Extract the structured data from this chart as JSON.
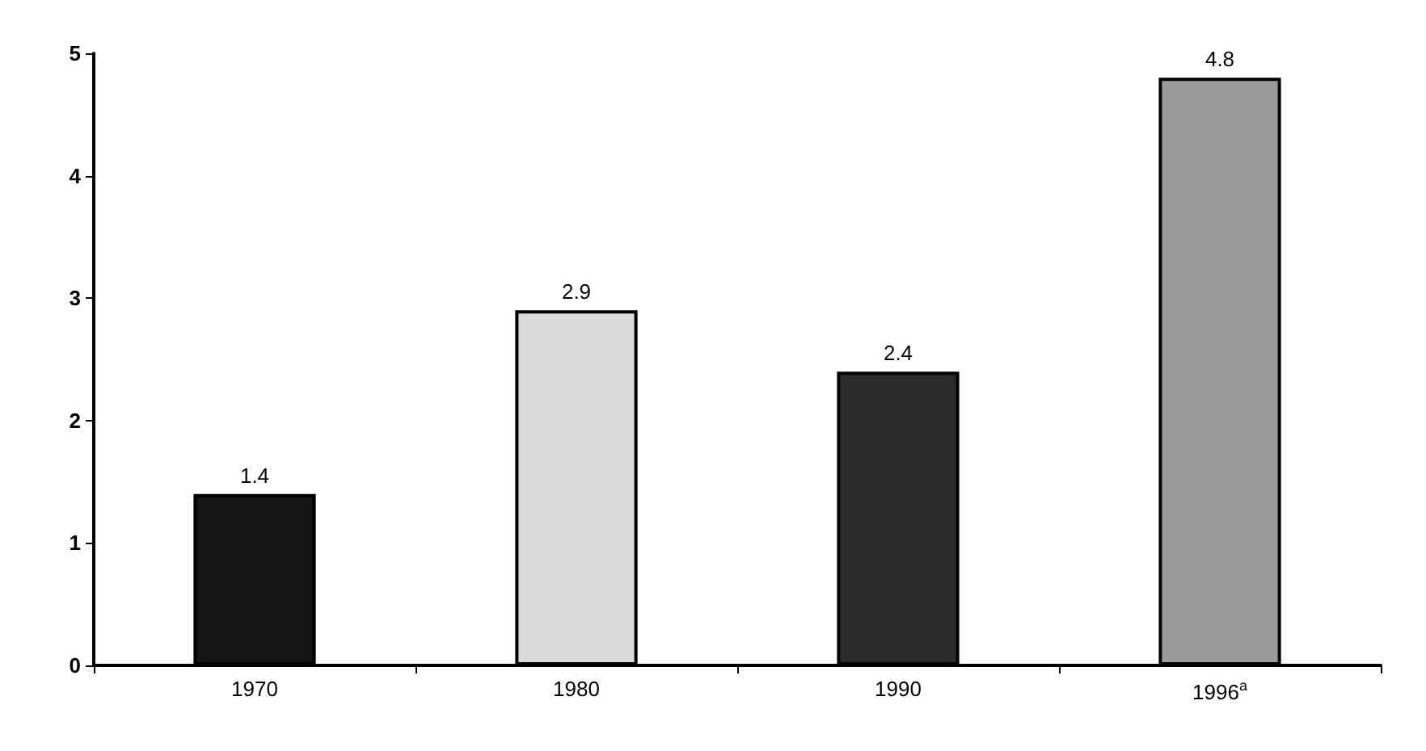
{
  "chart_data": {
    "type": "bar",
    "categories": [
      "1970",
      "1980",
      "1990",
      "1996$^{a}$"
    ],
    "values": [
      1.4,
      2.9,
      2.4,
      4.8
    ],
    "colors": [
      "#151515",
      "#d9d9d9",
      "#2b2b2b",
      "#9b9b9b"
    ],
    "ylim": [
      0,
      5
    ],
    "yticks": [
      0,
      1,
      2,
      3,
      4,
      5
    ],
    "grid": false,
    "data_labels": true
  }
}
